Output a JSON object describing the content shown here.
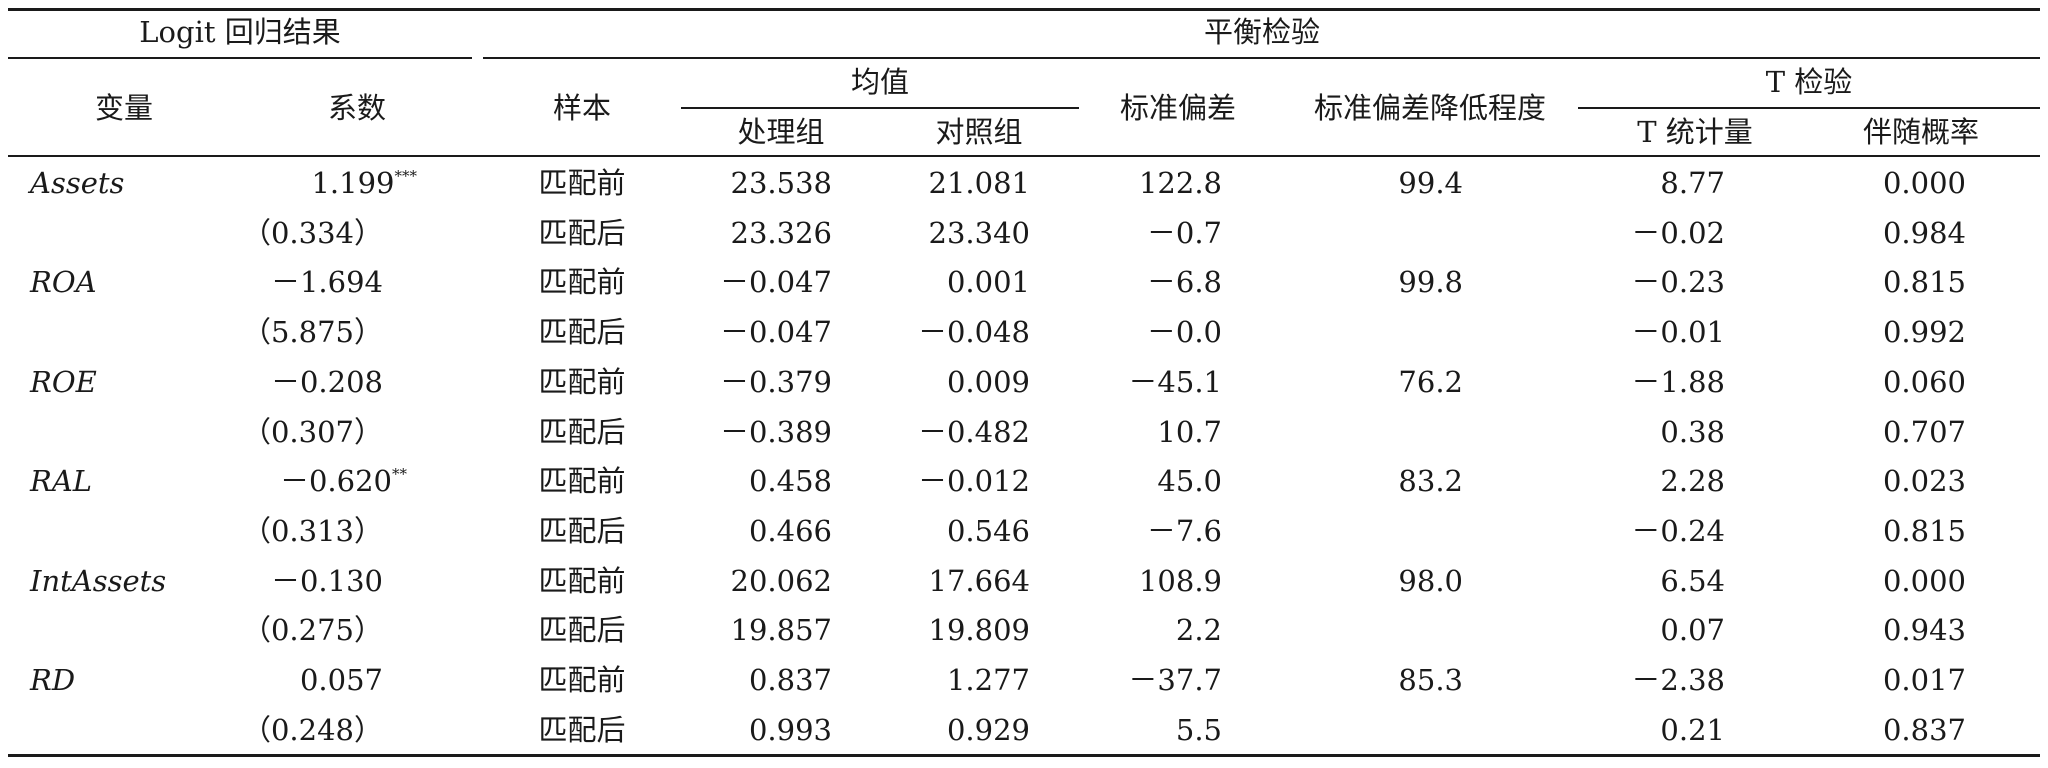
{
  "headers": {
    "logit_group": "Logit 回归结果",
    "balance_group": "平衡检验",
    "variable": "变量",
    "coefficient": "系数",
    "sample": "样本",
    "mean_group": "均值",
    "treated": "处理组",
    "control": "对照组",
    "std_bias": "标准偏差",
    "bias_reduction": "标准偏差降低程度",
    "t_test_group": "T 检验",
    "t_stat": "T 统计量",
    "p_value": "伴随概率"
  },
  "rows": [
    {
      "variable": "Assets",
      "coef": "1.199",
      "stars": "***",
      "sample": "匹配前",
      "treated": "23.538",
      "control": "21.081",
      "bias": "122.8",
      "reduction": "99.4",
      "t": "8.77",
      "p": "0.000"
    },
    {
      "variable": "",
      "coef": "（0.334）",
      "stars": "",
      "sample": "匹配后",
      "treated": "23.326",
      "control": "23.340",
      "bias": "－0.7",
      "reduction": "",
      "t": "－0.02",
      "p": "0.984"
    },
    {
      "variable": "ROA",
      "coef": "－1.694",
      "stars": "",
      "sample": "匹配前",
      "treated": "－0.047",
      "control": "0.001",
      "bias": "－6.8",
      "reduction": "99.8",
      "t": "－0.23",
      "p": "0.815"
    },
    {
      "variable": "",
      "coef": "（5.875）",
      "stars": "",
      "sample": "匹配后",
      "treated": "－0.047",
      "control": "－0.048",
      "bias": "－0.0",
      "reduction": "",
      "t": "－0.01",
      "p": "0.992"
    },
    {
      "variable": "ROE",
      "coef": "－0.208",
      "stars": "",
      "sample": "匹配前",
      "treated": "－0.379",
      "control": "0.009",
      "bias": "－45.1",
      "reduction": "76.2",
      "t": "－1.88",
      "p": "0.060"
    },
    {
      "variable": "",
      "coef": "（0.307）",
      "stars": "",
      "sample": "匹配后",
      "treated": "－0.389",
      "control": "－0.482",
      "bias": "10.7",
      "reduction": "",
      "t": "0.38",
      "p": "0.707"
    },
    {
      "variable": "RAL",
      "coef": "－0.620",
      "stars": "**",
      "sample": "匹配前",
      "treated": "0.458",
      "control": "－0.012",
      "bias": "45.0",
      "reduction": "83.2",
      "t": "2.28",
      "p": "0.023"
    },
    {
      "variable": "",
      "coef": "（0.313）",
      "stars": "",
      "sample": "匹配后",
      "treated": "0.466",
      "control": "0.546",
      "bias": "－7.6",
      "reduction": "",
      "t": "－0.24",
      "p": "0.815"
    },
    {
      "variable": "IntAssets",
      "coef": "－0.130",
      "stars": "",
      "sample": "匹配前",
      "treated": "20.062",
      "control": "17.664",
      "bias": "108.9",
      "reduction": "98.0",
      "t": "6.54",
      "p": "0.000"
    },
    {
      "variable": "",
      "coef": "（0.275）",
      "stars": "",
      "sample": "匹配后",
      "treated": "19.857",
      "control": "19.809",
      "bias": "2.2",
      "reduction": "",
      "t": "0.07",
      "p": "0.943"
    },
    {
      "variable": "RD",
      "coef": "0.057",
      "stars": "",
      "sample": "匹配前",
      "treated": "0.837",
      "control": "1.277",
      "bias": "－37.7",
      "reduction": "85.3",
      "t": "－2.38",
      "p": "0.017"
    },
    {
      "variable": "",
      "coef": "（0.248）",
      "stars": "",
      "sample": "匹配后",
      "treated": "0.993",
      "control": "0.929",
      "bias": "5.5",
      "reduction": "",
      "t": "0.21",
      "p": "0.837"
    }
  ]
}
